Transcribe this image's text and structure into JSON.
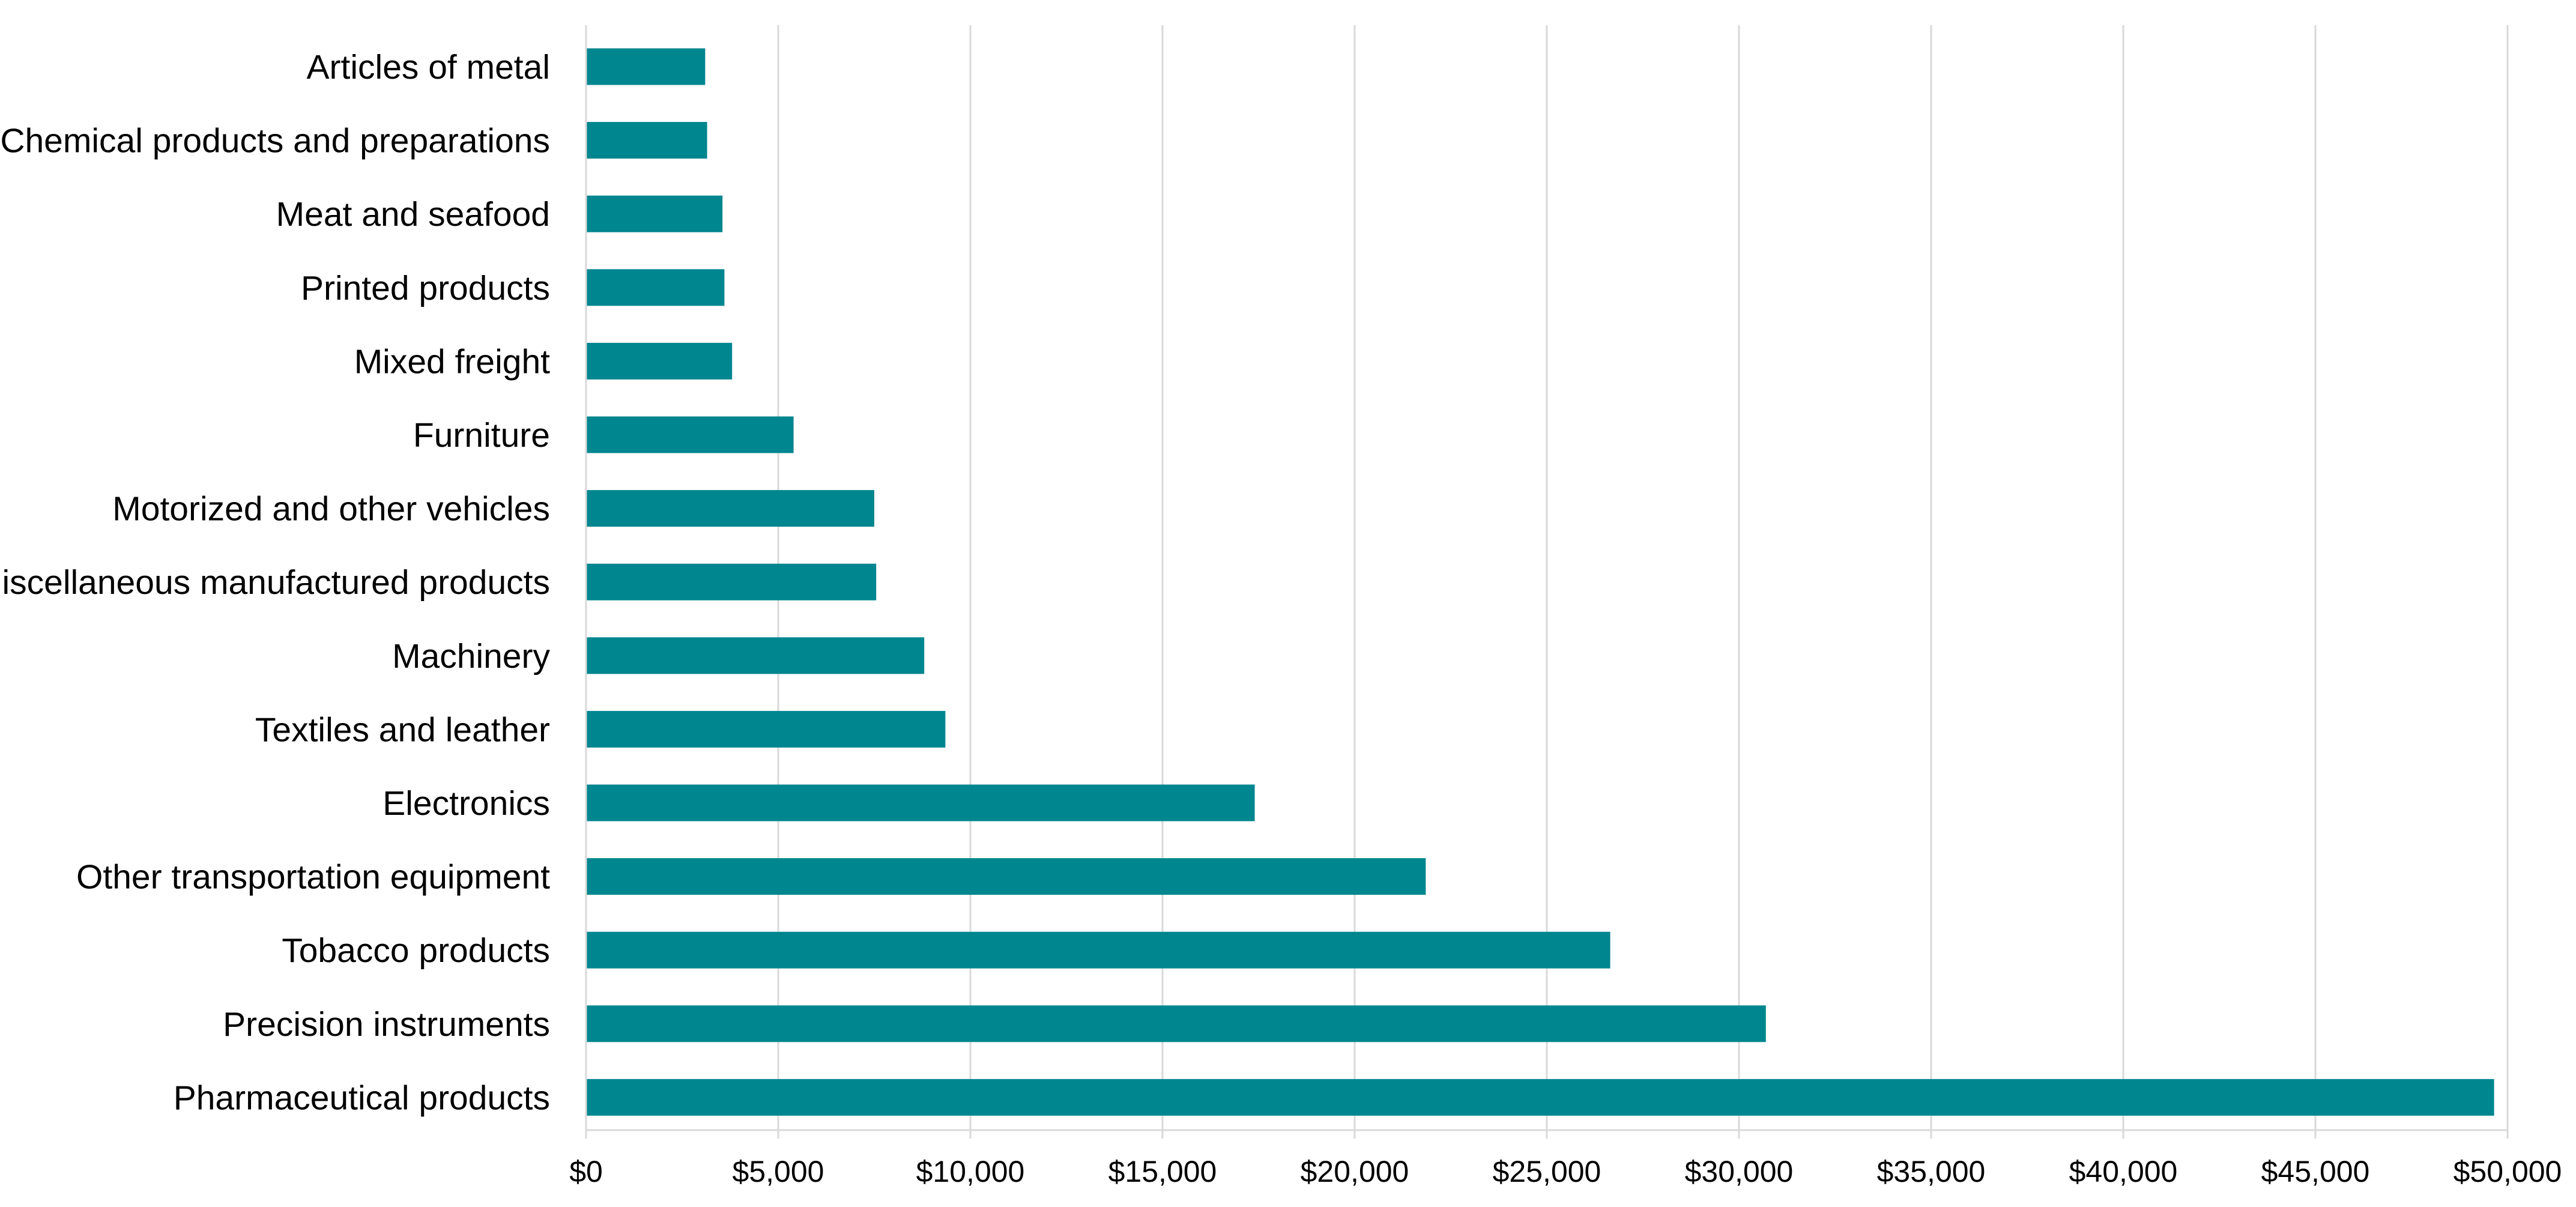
{
  "chart_data": {
    "type": "bar",
    "orientation": "horizontal",
    "title": "",
    "xlabel": "",
    "ylabel": "",
    "xlim": [
      0,
      50000
    ],
    "x_ticks": [
      0,
      5000,
      10000,
      15000,
      20000,
      25000,
      30000,
      35000,
      40000,
      45000,
      50000
    ],
    "x_tick_labels": [
      "$0",
      "$5,000",
      "$10,000",
      "$15,000",
      "$20,000",
      "$25,000",
      "$30,000",
      "$35,000",
      "$40,000",
      "$45,000",
      "$50,000"
    ],
    "grid": "vertical",
    "legend": "none",
    "bar_color": "#00868f",
    "categories": [
      "Articles of metal",
      "Chemical products and preparations",
      "Meat and seafood",
      "Printed products",
      "Mixed freight",
      "Furniture",
      "Motorized and other vehicles",
      "Miscellaneous manufactured products",
      "Machinery",
      "Textiles and leather",
      "Electronics",
      "Other transportation equipment",
      "Tobacco products",
      "Precision instruments",
      "Pharmaceutical products"
    ],
    "values": [
      3100,
      3150,
      3550,
      3600,
      3800,
      5400,
      7500,
      7550,
      8800,
      9350,
      17400,
      21850,
      26650,
      30700,
      49650
    ]
  }
}
